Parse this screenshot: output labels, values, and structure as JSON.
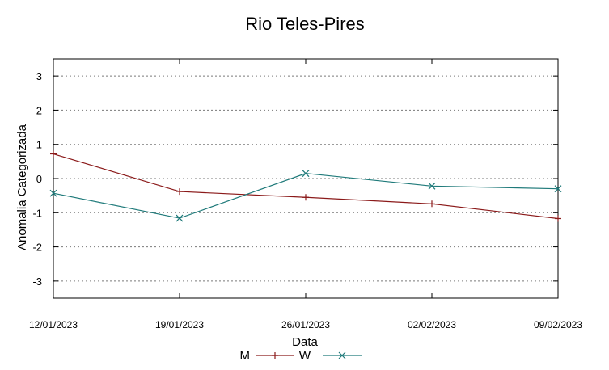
{
  "chart_data": {
    "type": "line",
    "title": "Rio Teles-Pires",
    "xlabel": "Data",
    "ylabel": "Anomalia Categorizada",
    "categories": [
      "12/01/2023",
      "19/01/2023",
      "26/01/2023",
      "02/02/2023",
      "09/02/2023"
    ],
    "ylim": [
      -3.5,
      3.5
    ],
    "yticks": [
      3,
      2,
      1,
      0,
      -1,
      -2,
      -3
    ],
    "ytick_labels": [
      "3",
      "2",
      "1",
      "0",
      "-1",
      "-2",
      "-3"
    ],
    "grid": "horizontal dotted",
    "legend_position": "bottom-center",
    "series": [
      {
        "name": "M",
        "color": "#8b1a1a",
        "marker": "plus",
        "values": [
          0.72,
          -0.38,
          -0.55,
          -0.74,
          -1.17
        ]
      },
      {
        "name": "W",
        "color": "#1f7a7a",
        "marker": "x",
        "values": [
          -0.43,
          -1.16,
          0.15,
          -0.22,
          -0.3
        ]
      }
    ]
  }
}
